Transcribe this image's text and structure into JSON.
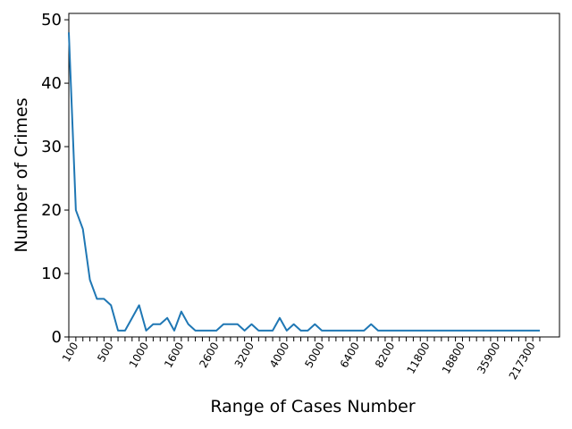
{
  "chart_data": {
    "type": "line",
    "xlabel": "Range of Cases Number",
    "ylabel": "Number of Crimes",
    "ylim": [
      0,
      51
    ],
    "y_ticks": [
      0,
      10,
      20,
      30,
      40,
      50
    ],
    "x_tick_labels": [
      "100",
      "500",
      "1000",
      "1600",
      "2600",
      "3200",
      "4000",
      "5000",
      "6400",
      "8200",
      "11800",
      "18800",
      "35900",
      "217300"
    ],
    "x_tick_label_positions": [
      1,
      6,
      11,
      16,
      21,
      26,
      31,
      36,
      41,
      46,
      51,
      56,
      61,
      66
    ],
    "line_color": "#1f77b4",
    "series": [
      {
        "values": [
          48,
          20,
          17,
          9,
          6,
          6,
          5,
          1,
          1,
          3,
          5,
          1,
          2,
          2,
          3,
          1,
          4,
          2,
          1,
          1,
          1,
          1,
          2,
          2,
          2,
          1,
          2,
          1,
          1,
          1,
          3,
          1,
          2,
          1,
          1,
          2,
          1,
          1,
          1,
          1,
          1,
          1,
          1,
          2,
          1,
          1,
          1,
          1,
          1,
          1,
          1,
          1,
          1,
          1,
          1,
          1,
          1,
          1,
          1,
          1,
          1,
          1,
          1,
          1,
          1,
          1,
          1,
          1
        ]
      }
    ],
    "grid": false
  }
}
